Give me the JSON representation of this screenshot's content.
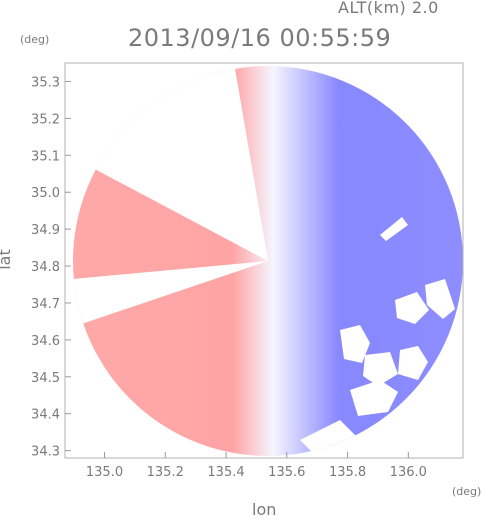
{
  "header": {
    "altitude": "ALT(km) 2.0",
    "timestamp": "2013/09/16 00:55:59"
  },
  "chart_data": {
    "type": "heatmap",
    "title": "2013/09/16 00:55:59",
    "xlabel": "lon",
    "ylabel": "lat",
    "x_unit": "(deg)",
    "y_unit": "(deg)",
    "xlim": [
      134.87,
      136.18
    ],
    "ylim": [
      34.28,
      35.35
    ],
    "x_ticks": [
      "135.0",
      "135.2",
      "135.4",
      "135.6",
      "135.8",
      "136.0"
    ],
    "y_ticks": [
      "34.3",
      "34.4",
      "34.5",
      "34.6",
      "34.7",
      "34.8",
      "34.9",
      "35.0",
      "35.1",
      "35.2",
      "35.3"
    ],
    "radar_center": [
      135.53,
      34.81
    ],
    "colors": {
      "negative": "#ff9a9a",
      "near_zero": "#f4f4ff",
      "positive": "#7a7aff",
      "frame": "#b0b0b0"
    }
  }
}
